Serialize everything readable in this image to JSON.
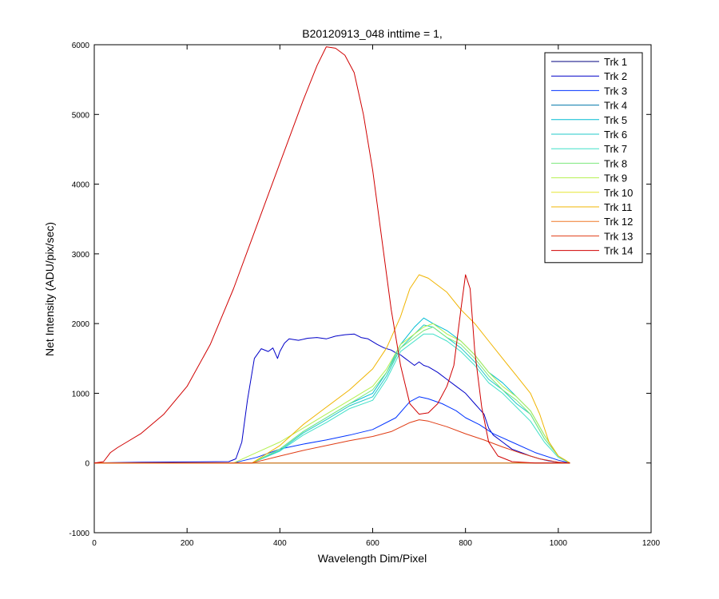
{
  "chart_data": {
    "type": "line",
    "title": "B20120913_048 inttime = 1,",
    "xlabel": "Wavelength Dim/Pixel",
    "ylabel": "Net Intensity (ADU/pix/sec)",
    "xlim": [
      0,
      1200
    ],
    "ylim": [
      -1000,
      6000
    ],
    "xticks": [
      0,
      200,
      400,
      600,
      800,
      1000,
      1200
    ],
    "yticks": [
      -1000,
      0,
      1000,
      2000,
      3000,
      4000,
      5000,
      6000
    ],
    "xtick_labels": [
      "0",
      "200",
      "400",
      "600",
      "800",
      "1000",
      "1200"
    ],
    "ytick_labels": [
      "-1000",
      "0",
      "1000",
      "2000",
      "3000",
      "4000",
      "5000",
      "6000"
    ],
    "grid": false,
    "legend_position": "top-right",
    "series": [
      {
        "name": "Trk 1",
        "color": "#00007f",
        "x": [
          0,
          300,
          1025
        ],
        "y": [
          0,
          0,
          0
        ]
      },
      {
        "name": "Trk 2",
        "color": "#0000c8",
        "x": [
          0,
          100,
          200,
          290,
          305,
          318,
          330,
          345,
          360,
          375,
          385,
          395,
          400,
          410,
          420,
          440,
          460,
          480,
          500,
          520,
          540,
          560,
          575,
          590,
          610,
          625,
          640,
          650,
          660,
          670,
          680,
          690,
          700,
          710,
          720,
          740,
          760,
          780,
          800,
          820,
          840,
          850,
          860,
          880,
          900,
          920,
          940,
          960,
          980,
          1000,
          1025
        ],
        "y": [
          0,
          10,
          15,
          20,
          60,
          300,
          900,
          1500,
          1640,
          1600,
          1650,
          1500,
          1600,
          1720,
          1780,
          1760,
          1790,
          1800,
          1780,
          1820,
          1840,
          1850,
          1800,
          1780,
          1700,
          1650,
          1620,
          1580,
          1550,
          1500,
          1450,
          1400,
          1450,
          1400,
          1380,
          1300,
          1200,
          1100,
          1000,
          850,
          700,
          500,
          400,
          300,
          200,
          150,
          100,
          60,
          30,
          10,
          0
        ]
      },
      {
        "name": "Trk 3",
        "color": "#0033ff",
        "x": [
          0,
          300,
          350,
          400,
          450,
          500,
          550,
          600,
          650,
          680,
          700,
          720,
          750,
          780,
          800,
          830,
          860,
          900,
          950,
          1000,
          1025
        ],
        "y": [
          0,
          0,
          80,
          200,
          270,
          330,
          400,
          480,
          650,
          880,
          950,
          920,
          850,
          750,
          650,
          550,
          420,
          300,
          150,
          40,
          0
        ]
      },
      {
        "name": "Trk 4",
        "color": "#0077aa",
        "x": [
          0,
          1025
        ],
        "y": [
          0,
          0
        ]
      },
      {
        "name": "Trk 5",
        "color": "#00bcd4",
        "x": [
          0,
          340,
          400,
          450,
          500,
          550,
          600,
          630,
          660,
          690,
          710,
          730,
          760,
          790,
          820,
          850,
          880,
          910,
          940,
          970,
          1000,
          1025
        ],
        "y": [
          0,
          0,
          200,
          450,
          650,
          850,
          1000,
          1300,
          1700,
          1950,
          2080,
          2000,
          1900,
          1750,
          1550,
          1300,
          1150,
          950,
          750,
          400,
          100,
          0
        ]
      },
      {
        "name": "Trk 6",
        "color": "#20c8c8",
        "x": [
          0,
          340,
          400,
          450,
          500,
          550,
          600,
          630,
          660,
          690,
          710,
          730,
          760,
          790,
          820,
          850,
          880,
          910,
          940,
          970,
          1000,
          1025
        ],
        "y": [
          0,
          0,
          180,
          430,
          620,
          820,
          950,
          1250,
          1650,
          1850,
          1980,
          1950,
          1800,
          1650,
          1450,
          1200,
          1050,
          850,
          700,
          350,
          100,
          0
        ]
      },
      {
        "name": "Trk 7",
        "color": "#40e0c8",
        "x": [
          0,
          340,
          400,
          450,
          500,
          550,
          600,
          630,
          660,
          690,
          710,
          730,
          760,
          790,
          820,
          850,
          880,
          910,
          940,
          970,
          1000,
          1025
        ],
        "y": [
          0,
          0,
          170,
          400,
          580,
          780,
          900,
          1200,
          1600,
          1750,
          1850,
          1850,
          1750,
          1600,
          1400,
          1150,
          1000,
          800,
          600,
          300,
          80,
          0
        ]
      },
      {
        "name": "Trk 8",
        "color": "#7be87b",
        "x": [
          0,
          340,
          400,
          450,
          500,
          550,
          600,
          630,
          660,
          690,
          710,
          730,
          760,
          790,
          820,
          850,
          880,
          910,
          940,
          970,
          1000,
          1025
        ],
        "y": [
          0,
          0,
          200,
          450,
          650,
          850,
          1050,
          1300,
          1650,
          1800,
          1900,
          1950,
          1800,
          1700,
          1500,
          1250,
          1050,
          900,
          700,
          350,
          100,
          0
        ]
      },
      {
        "name": "Trk 9",
        "color": "#b4f050",
        "x": [
          0,
          300,
          350,
          400,
          450,
          500,
          550,
          600,
          630,
          660,
          690,
          710,
          730,
          760,
          790,
          820,
          850,
          880,
          910,
          940,
          970,
          1000,
          1025
        ],
        "y": [
          0,
          0,
          150,
          300,
          500,
          700,
          900,
          1100,
          1350,
          1700,
          1850,
          1950,
          2000,
          1850,
          1750,
          1550,
          1300,
          1100,
          950,
          750,
          400,
          100,
          0
        ]
      },
      {
        "name": "Trk 10",
        "color": "#e6e632",
        "x": [
          0,
          1025
        ],
        "y": [
          0,
          0
        ]
      },
      {
        "name": "Trk 11",
        "color": "#f0b400",
        "x": [
          0,
          340,
          400,
          450,
          500,
          550,
          600,
          630,
          660,
          680,
          700,
          720,
          740,
          760,
          790,
          820,
          850,
          880,
          910,
          940,
          960,
          980,
          1000,
          1025
        ],
        "y": [
          0,
          0,
          250,
          550,
          800,
          1050,
          1350,
          1650,
          2100,
          2500,
          2700,
          2650,
          2550,
          2450,
          2200,
          2000,
          1750,
          1500,
          1250,
          1000,
          700,
          300,
          100,
          0
        ]
      },
      {
        "name": "Trk 12",
        "color": "#f07828",
        "x": [
          0,
          1025
        ],
        "y": [
          0,
          0
        ]
      },
      {
        "name": "Trk 13",
        "color": "#e03c14",
        "x": [
          0,
          340,
          400,
          450,
          500,
          550,
          600,
          640,
          680,
          700,
          720,
          760,
          800,
          840,
          880,
          920,
          960,
          1000,
          1025
        ],
        "y": [
          0,
          0,
          100,
          180,
          250,
          320,
          380,
          450,
          580,
          620,
          600,
          520,
          420,
          330,
          230,
          140,
          60,
          10,
          0
        ]
      },
      {
        "name": "Trk 14",
        "color": "#d00000",
        "x": [
          0,
          20,
          35,
          50,
          70,
          100,
          150,
          200,
          250,
          300,
          350,
          400,
          450,
          480,
          500,
          520,
          540,
          560,
          580,
          600,
          620,
          640,
          660,
          680,
          700,
          720,
          740,
          760,
          775,
          790,
          800,
          810,
          820,
          835,
          850,
          870,
          900,
          950,
          1000,
          1025
        ],
        "y": [
          0,
          20,
          150,
          220,
          300,
          420,
          700,
          1100,
          1700,
          2500,
          3400,
          4300,
          5200,
          5700,
          5970,
          5950,
          5850,
          5600,
          5000,
          4200,
          3200,
          2200,
          1400,
          850,
          700,
          720,
          850,
          1100,
          1400,
          2200,
          2700,
          2500,
          1600,
          800,
          300,
          100,
          20,
          0,
          0,
          0
        ]
      }
    ]
  }
}
